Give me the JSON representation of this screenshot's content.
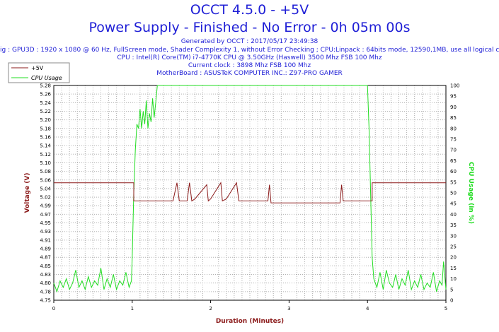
{
  "header": {
    "title": "OCCT 4.5.0 - +5V",
    "subtitle": "Power Supply - Finished - No Error - 0h 05m 00s",
    "generated": "Generated by OCCT : 2017/05/17 23:49:38",
    "config": "ig : GPU3D : 1920 x 1080 @ 60 Hz, FullScreen mode, Shader Complexity 1, without Error Checking ; CPU:Linpack : 64bits mode, 12590,1MB, use all logical c",
    "cpu": "CPU : Intel(R) Core(TM) i7-4770K CPU @ 3.50GHz (Haswell) 3500 Mhz FSB 100 Mhz",
    "clock": "Current clock : 3898 Mhz FSB 100 Mhz",
    "motherboard": "MotherBoard : ASUSTeK COMPUTER INC.: Z97-PRO GAMER"
  },
  "colors": {
    "voltage": "#8b1a1a",
    "cpu": "#22dd22",
    "text": "#1f1fd6",
    "grid": "#b0b0b0"
  },
  "chart_data": {
    "type": "line",
    "xlabel": "Duration (Minutes)",
    "ylabel": "Voltage (V)",
    "y2label": "CPU Usage (in %)",
    "xlim": [
      0,
      5
    ],
    "ylim": [
      4.75,
      5.28
    ],
    "y2lim": [
      0,
      100
    ],
    "x_ticks": [
      "0",
      "1",
      "2",
      "3",
      "4",
      "5"
    ],
    "y_ticks": [
      "5.28",
      "5.26",
      "5.24",
      "5.22",
      "5.20",
      "5.18",
      "5.16",
      "5.14",
      "5.12",
      "5.10",
      "5.08",
      "5.06",
      "5.04",
      "5.02",
      "4.99",
      "4.97",
      "4.95",
      "4.93",
      "4.91",
      "4.89",
      "4.87",
      "4.85",
      "4.83",
      "4.80",
      "4.78",
      "4.75"
    ],
    "y2_ticks": [
      "100",
      "95",
      "90",
      "85",
      "80",
      "75",
      "70",
      "65",
      "60",
      "55",
      "50",
      "45",
      "40",
      "35",
      "30",
      "25",
      "20",
      "15",
      "10",
      "5",
      "0"
    ],
    "legend_position": "top-left",
    "grid": true,
    "series": [
      {
        "name": "+5V",
        "axis": "left",
        "points": [
          [
            0,
            5.04
          ],
          [
            1.02,
            5.04
          ],
          [
            1.02,
            4.995
          ],
          [
            1.5,
            4.995
          ],
          [
            1.52,
            4.995
          ],
          [
            1.57,
            5.04
          ],
          [
            1.6,
            4.995
          ],
          [
            1.7,
            4.995
          ],
          [
            1.73,
            5.04
          ],
          [
            1.76,
            4.995
          ],
          [
            1.8,
            5.0
          ],
          [
            1.95,
            5.035
          ],
          [
            1.97,
            4.995
          ],
          [
            2.0,
            5.0
          ],
          [
            2.13,
            5.04
          ],
          [
            2.15,
            4.995
          ],
          [
            2.2,
            5.0
          ],
          [
            2.33,
            5.04
          ],
          [
            2.36,
            4.995
          ],
          [
            2.73,
            4.995
          ],
          [
            2.75,
            5.035
          ],
          [
            2.77,
            4.99
          ],
          [
            3.65,
            4.99
          ],
          [
            3.67,
            5.035
          ],
          [
            3.69,
            4.995
          ],
          [
            4.06,
            4.995
          ],
          [
            4.06,
            5.04
          ],
          [
            5,
            5.04
          ]
        ]
      },
      {
        "name": "CPU Usage",
        "axis": "right",
        "points": [
          [
            0,
            8
          ],
          [
            0.04,
            4
          ],
          [
            0.08,
            9
          ],
          [
            0.12,
            6
          ],
          [
            0.16,
            10
          ],
          [
            0.2,
            5
          ],
          [
            0.24,
            8
          ],
          [
            0.28,
            14
          ],
          [
            0.32,
            6
          ],
          [
            0.36,
            9
          ],
          [
            0.4,
            5
          ],
          [
            0.44,
            11
          ],
          [
            0.48,
            6
          ],
          [
            0.52,
            9
          ],
          [
            0.56,
            7
          ],
          [
            0.6,
            15
          ],
          [
            0.64,
            5
          ],
          [
            0.68,
            10
          ],
          [
            0.72,
            6
          ],
          [
            0.76,
            12
          ],
          [
            0.8,
            5
          ],
          [
            0.84,
            9
          ],
          [
            0.88,
            7
          ],
          [
            0.92,
            13
          ],
          [
            0.96,
            6
          ],
          [
            0.99,
            9
          ],
          [
            1.0,
            20
          ],
          [
            1.02,
            50
          ],
          [
            1.04,
            70
          ],
          [
            1.06,
            82
          ],
          [
            1.08,
            80
          ],
          [
            1.1,
            89
          ],
          [
            1.12,
            80
          ],
          [
            1.14,
            88
          ],
          [
            1.16,
            82
          ],
          [
            1.18,
            93
          ],
          [
            1.2,
            80
          ],
          [
            1.22,
            87
          ],
          [
            1.24,
            83
          ],
          [
            1.26,
            94
          ],
          [
            1.28,
            85
          ],
          [
            1.3,
            92
          ],
          [
            1.32,
            100
          ],
          [
            4.0,
            100
          ],
          [
            4.02,
            80
          ],
          [
            4.04,
            50
          ],
          [
            4.06,
            20
          ],
          [
            4.08,
            10
          ],
          [
            4.12,
            6
          ],
          [
            4.16,
            13
          ],
          [
            4.2,
            5
          ],
          [
            4.24,
            14
          ],
          [
            4.28,
            8
          ],
          [
            4.32,
            6
          ],
          [
            4.36,
            12
          ],
          [
            4.4,
            5
          ],
          [
            4.44,
            10
          ],
          [
            4.48,
            7
          ],
          [
            4.52,
            14
          ],
          [
            4.56,
            5
          ],
          [
            4.6,
            9
          ],
          [
            4.64,
            6
          ],
          [
            4.68,
            12
          ],
          [
            4.72,
            5
          ],
          [
            4.76,
            8
          ],
          [
            4.8,
            6
          ],
          [
            4.84,
            13
          ],
          [
            4.88,
            4
          ],
          [
            4.92,
            9
          ],
          [
            4.95,
            7
          ],
          [
            4.97,
            18
          ],
          [
            5.0,
            5
          ]
        ]
      }
    ]
  }
}
